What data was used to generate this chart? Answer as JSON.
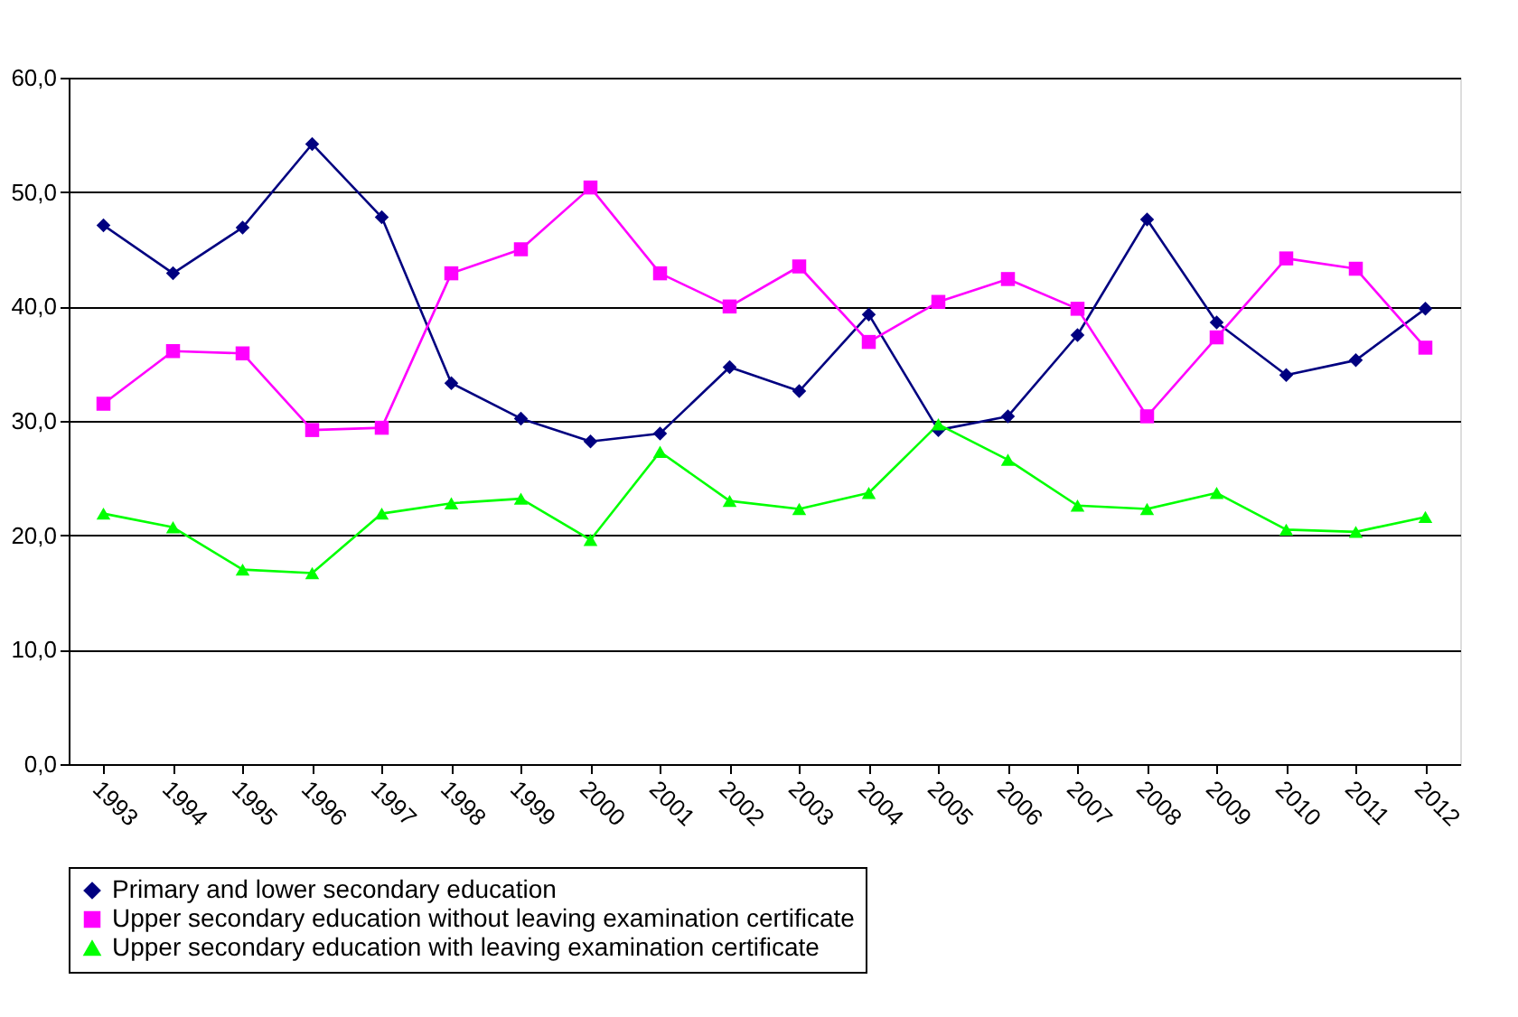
{
  "chart_data": {
    "type": "line",
    "categories": [
      "1993",
      "1994",
      "1995",
      "1996",
      "1997",
      "1998",
      "1999",
      "2000",
      "2001",
      "2002",
      "2003",
      "2004",
      "2005",
      "2006",
      "2007",
      "2008",
      "2009",
      "2010",
      "2011",
      "2012"
    ],
    "series": [
      {
        "name": "Primary and lower secondary education",
        "color": "#000080",
        "marker": "diamond",
        "values": [
          47.1,
          42.9,
          46.9,
          54.2,
          47.8,
          33.3,
          30.2,
          28.2,
          28.9,
          34.7,
          32.6,
          39.3,
          29.2,
          30.4,
          37.5,
          47.6,
          38.6,
          34.0,
          35.3,
          39.8
        ]
      },
      {
        "name": "Upper secondary education without leaving examination certificate",
        "color": "#ff00ff",
        "marker": "square",
        "values": [
          31.5,
          36.1,
          35.9,
          29.2,
          29.4,
          42.9,
          45.0,
          50.4,
          42.9,
          40.0,
          43.5,
          36.9,
          40.4,
          42.4,
          39.8,
          30.4,
          37.3,
          44.2,
          43.3,
          36.4
        ]
      },
      {
        "name": "Upper secondary education with leaving examination certificate",
        "color": "#00ff00",
        "marker": "triangle",
        "values": [
          21.9,
          20.7,
          17.0,
          16.7,
          21.9,
          22.8,
          23.2,
          19.6,
          27.3,
          23.0,
          22.3,
          23.7,
          29.7,
          26.6,
          22.6,
          22.3,
          23.7,
          20.5,
          20.3,
          21.6
        ]
      }
    ],
    "ylim": [
      0,
      60
    ],
    "yticks": [
      {
        "value": 0,
        "label": "0,0"
      },
      {
        "value": 10,
        "label": "10,0"
      },
      {
        "value": 20,
        "label": "20,0"
      },
      {
        "value": 30,
        "label": "30,0"
      },
      {
        "value": 40,
        "label": "40,0"
      },
      {
        "value": 50,
        "label": "50,0"
      },
      {
        "value": 60,
        "label": "60,0"
      }
    ],
    "grid": "y",
    "legend": "bottom",
    "line_style": "solid"
  }
}
